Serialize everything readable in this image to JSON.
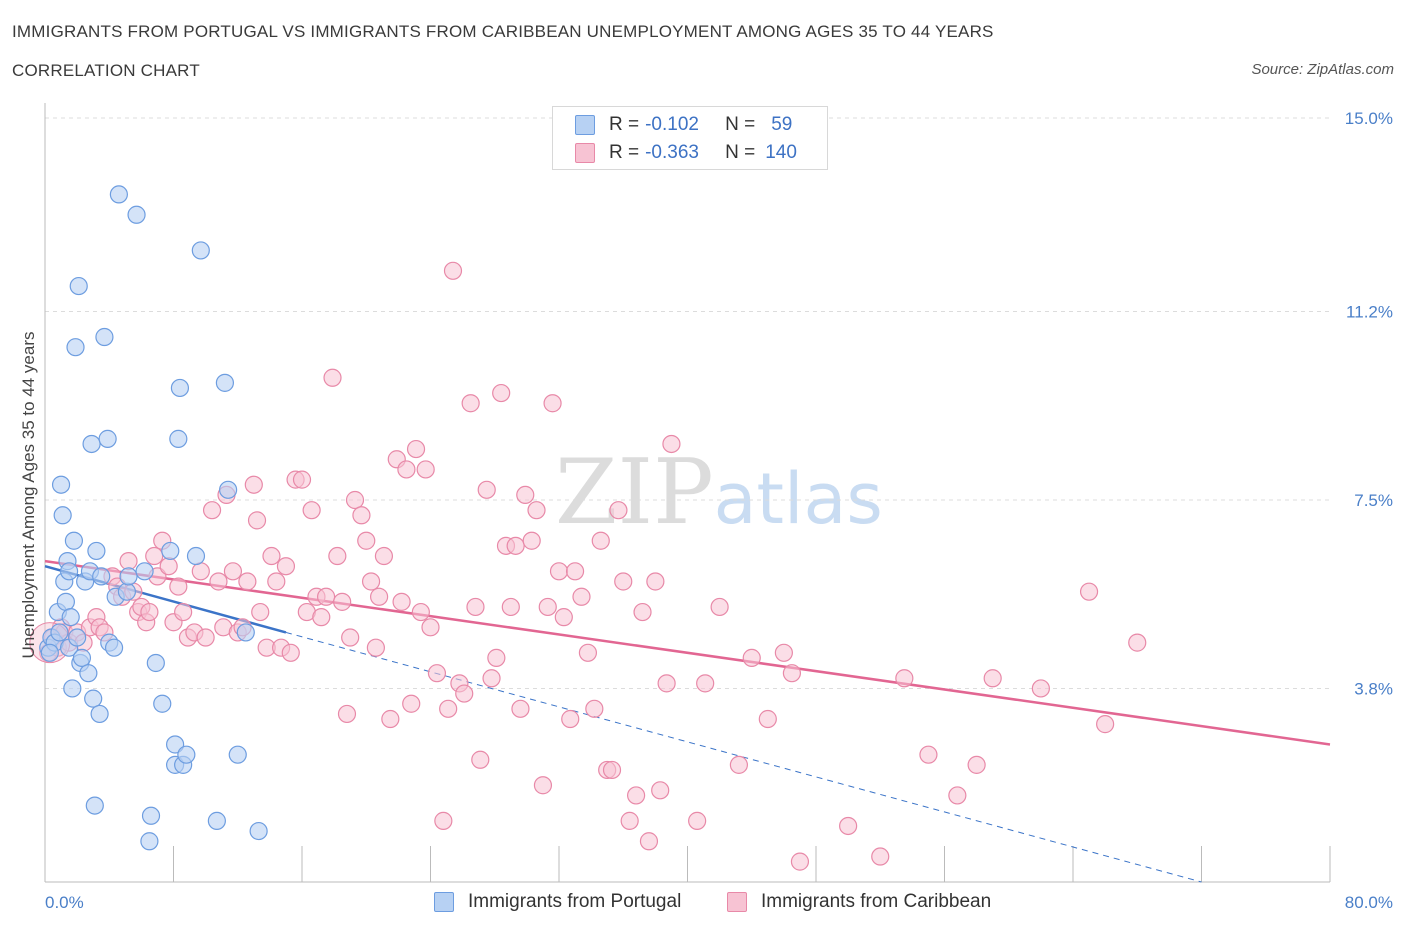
{
  "title": "IMMIGRANTS FROM PORTUGAL VS IMMIGRANTS FROM CARIBBEAN UNEMPLOYMENT AMONG AGES 35 TO 44 YEARS",
  "subtitle": "CORRELATION CHART",
  "source": "Source: ZipAtlas.com",
  "watermark": {
    "zip": "ZIP",
    "atlas": "atlas"
  },
  "legend": {
    "r_label": "R =",
    "n_label": "N =",
    "portugal": {
      "r": "-0.102",
      "n": "59"
    },
    "caribbean": {
      "r": "-0.363",
      "n": "140"
    }
  },
  "colors": {
    "portugal": "#6d9de0",
    "portugal_fill": "#b7d1f3",
    "caribbean": "#e889a8",
    "caribbean_fill": "#f7c3d3",
    "portugal_line": "#3b74c8",
    "caribbean_line": "#e26692",
    "tick": "#4a7fc8"
  },
  "chart_data": {
    "type": "scatter",
    "title": "IMMIGRANTS FROM PORTUGAL VS IMMIGRANTS FROM CARIBBEAN UNEMPLOYMENT AMONG AGES 35 TO 44 YEARS",
    "xlabel": "",
    "ylabel": "Unemployment Among Ages 35 to 44 years",
    "xlim": [
      0,
      80
    ],
    "ylim": [
      0,
      15
    ],
    "x_tick_labels": [
      "0.0%",
      "80.0%"
    ],
    "y_ticks": [
      3.8,
      7.5,
      11.2,
      15.0
    ],
    "y_tick_labels": [
      "3.8%",
      "7.5%",
      "11.2%",
      "15.0%"
    ],
    "grid": "horizontal dashed",
    "legend_placement": "top-center",
    "series": [
      {
        "name": "Immigrants from Portugal",
        "trend": {
          "x": [
            0,
            15
          ],
          "y": [
            6.2,
            4.9
          ],
          "extended_to": [
            72,
            0
          ]
        },
        "points": [
          [
            0.2,
            4.6
          ],
          [
            0.4,
            4.8
          ],
          [
            0.6,
            4.7
          ],
          [
            0.8,
            5.3
          ],
          [
            1.0,
            7.8
          ],
          [
            1.1,
            7.2
          ],
          [
            1.2,
            5.9
          ],
          [
            1.3,
            5.5
          ],
          [
            1.4,
            6.3
          ],
          [
            1.5,
            4.6
          ],
          [
            1.6,
            5.2
          ],
          [
            1.7,
            3.8
          ],
          [
            1.8,
            6.7
          ],
          [
            1.9,
            10.5
          ],
          [
            2.1,
            11.7
          ],
          [
            2.2,
            4.3
          ],
          [
            2.3,
            4.4
          ],
          [
            2.5,
            5.9
          ],
          [
            2.7,
            4.1
          ],
          [
            2.8,
            6.1
          ],
          [
            2.9,
            8.6
          ],
          [
            3.0,
            3.6
          ],
          [
            3.1,
            1.5
          ],
          [
            3.2,
            6.5
          ],
          [
            3.4,
            3.3
          ],
          [
            3.5,
            6.0
          ],
          [
            3.7,
            10.7
          ],
          [
            3.9,
            8.7
          ],
          [
            4.0,
            4.7
          ],
          [
            4.3,
            4.6
          ],
          [
            4.4,
            5.6
          ],
          [
            4.6,
            13.5
          ],
          [
            5.1,
            5.7
          ],
          [
            5.2,
            6.0
          ],
          [
            5.7,
            13.1
          ],
          [
            6.2,
            6.1
          ],
          [
            6.5,
            0.8
          ],
          [
            6.6,
            1.3
          ],
          [
            6.9,
            4.3
          ],
          [
            7.3,
            3.5
          ],
          [
            7.8,
            6.5
          ],
          [
            8.1,
            2.7
          ],
          [
            8.1,
            2.3
          ],
          [
            8.3,
            8.7
          ],
          [
            8.4,
            9.7
          ],
          [
            8.6,
            2.3
          ],
          [
            8.8,
            2.5
          ],
          [
            9.4,
            6.4
          ],
          [
            9.7,
            12.4
          ],
          [
            10.7,
            1.2
          ],
          [
            11.2,
            9.8
          ],
          [
            11.4,
            7.7
          ],
          [
            12.0,
            2.5
          ],
          [
            12.5,
            4.9
          ],
          [
            13.3,
            1.0
          ],
          [
            0.3,
            4.5
          ],
          [
            0.9,
            4.9
          ],
          [
            2.0,
            4.8
          ],
          [
            1.5,
            6.1
          ]
        ]
      },
      {
        "name": "Immigrants from Caribbean",
        "trend": {
          "x": [
            0,
            80
          ],
          "y": [
            6.3,
            2.7
          ]
        },
        "points": [
          [
            0.2,
            4.5
          ],
          [
            0.5,
            4.8
          ],
          [
            0.8,
            4.6
          ],
          [
            1.0,
            5.0
          ],
          [
            1.2,
            4.9
          ],
          [
            1.5,
            4.7
          ],
          [
            2.0,
            4.9
          ],
          [
            2.4,
            4.7
          ],
          [
            2.8,
            5.0
          ],
          [
            3.2,
            5.2
          ],
          [
            3.4,
            5.0
          ],
          [
            3.7,
            4.9
          ],
          [
            4.2,
            6.0
          ],
          [
            4.5,
            5.8
          ],
          [
            4.8,
            5.6
          ],
          [
            5.2,
            6.3
          ],
          [
            5.5,
            5.7
          ],
          [
            5.8,
            5.3
          ],
          [
            6.0,
            5.4
          ],
          [
            6.3,
            5.1
          ],
          [
            6.5,
            5.3
          ],
          [
            6.8,
            6.4
          ],
          [
            7.0,
            6.0
          ],
          [
            7.3,
            6.7
          ],
          [
            7.7,
            6.2
          ],
          [
            8.0,
            5.1
          ],
          [
            8.3,
            5.8
          ],
          [
            8.6,
            5.3
          ],
          [
            8.9,
            4.8
          ],
          [
            9.3,
            4.9
          ],
          [
            9.7,
            6.1
          ],
          [
            10.0,
            4.8
          ],
          [
            10.4,
            7.3
          ],
          [
            10.8,
            5.9
          ],
          [
            11.1,
            5.0
          ],
          [
            11.3,
            7.6
          ],
          [
            11.7,
            6.1
          ],
          [
            12.0,
            4.9
          ],
          [
            12.3,
            5.0
          ],
          [
            12.6,
            5.9
          ],
          [
            13.0,
            7.8
          ],
          [
            13.2,
            7.1
          ],
          [
            13.4,
            5.3
          ],
          [
            13.8,
            4.6
          ],
          [
            14.1,
            6.4
          ],
          [
            14.4,
            5.9
          ],
          [
            14.7,
            4.6
          ],
          [
            15.0,
            6.2
          ],
          [
            15.3,
            4.5
          ],
          [
            15.6,
            7.9
          ],
          [
            16.0,
            7.9
          ],
          [
            16.3,
            5.3
          ],
          [
            16.6,
            7.3
          ],
          [
            16.9,
            5.6
          ],
          [
            17.2,
            5.2
          ],
          [
            17.5,
            5.6
          ],
          [
            17.9,
            9.9
          ],
          [
            18.2,
            6.4
          ],
          [
            18.5,
            5.5
          ],
          [
            18.8,
            3.3
          ],
          [
            19.0,
            4.8
          ],
          [
            19.3,
            7.5
          ],
          [
            19.7,
            7.2
          ],
          [
            20.0,
            6.7
          ],
          [
            20.3,
            5.9
          ],
          [
            20.6,
            4.6
          ],
          [
            20.8,
            5.6
          ],
          [
            21.1,
            6.4
          ],
          [
            21.5,
            3.2
          ],
          [
            21.9,
            8.3
          ],
          [
            22.2,
            5.5
          ],
          [
            22.5,
            8.1
          ],
          [
            22.8,
            3.5
          ],
          [
            23.1,
            8.5
          ],
          [
            23.4,
            5.3
          ],
          [
            23.7,
            8.1
          ],
          [
            24.0,
            5.0
          ],
          [
            24.4,
            4.1
          ],
          [
            24.8,
            1.2
          ],
          [
            25.1,
            3.4
          ],
          [
            25.4,
            12.0
          ],
          [
            25.8,
            3.9
          ],
          [
            26.1,
            3.7
          ],
          [
            26.5,
            9.4
          ],
          [
            26.8,
            5.4
          ],
          [
            27.1,
            2.4
          ],
          [
            27.5,
            7.7
          ],
          [
            27.8,
            4.0
          ],
          [
            28.1,
            4.4
          ],
          [
            28.4,
            9.6
          ],
          [
            28.7,
            6.6
          ],
          [
            29.0,
            5.4
          ],
          [
            29.3,
            6.6
          ],
          [
            29.6,
            3.4
          ],
          [
            29.9,
            7.6
          ],
          [
            30.3,
            6.7
          ],
          [
            30.6,
            7.3
          ],
          [
            31.0,
            1.9
          ],
          [
            31.3,
            5.4
          ],
          [
            31.6,
            9.4
          ],
          [
            32.0,
            6.1
          ],
          [
            32.3,
            5.2
          ],
          [
            32.7,
            3.2
          ],
          [
            33.0,
            6.1
          ],
          [
            33.4,
            5.6
          ],
          [
            33.8,
            4.5
          ],
          [
            34.2,
            3.4
          ],
          [
            34.6,
            6.7
          ],
          [
            35.0,
            2.2
          ],
          [
            35.3,
            2.2
          ],
          [
            35.7,
            7.3
          ],
          [
            36.0,
            5.9
          ],
          [
            36.4,
            1.2
          ],
          [
            36.8,
            1.7
          ],
          [
            37.2,
            5.3
          ],
          [
            37.6,
            0.8
          ],
          [
            38.0,
            5.9
          ],
          [
            38.3,
            1.8
          ],
          [
            38.7,
            3.9
          ],
          [
            39.0,
            8.6
          ],
          [
            40.6,
            1.2
          ],
          [
            41.1,
            3.9
          ],
          [
            42.0,
            5.4
          ],
          [
            43.2,
            2.3
          ],
          [
            44.0,
            4.4
          ],
          [
            45.0,
            3.2
          ],
          [
            46.0,
            4.5
          ],
          [
            46.5,
            4.1
          ],
          [
            47.0,
            0.4
          ],
          [
            50.0,
            1.1
          ],
          [
            52.0,
            0.5
          ],
          [
            53.5,
            4.0
          ],
          [
            55.0,
            2.5
          ],
          [
            56.8,
            1.7
          ],
          [
            58.0,
            2.3
          ],
          [
            59.0,
            4.0
          ],
          [
            62.0,
            3.8
          ],
          [
            65.0,
            5.7
          ],
          [
            66.0,
            3.1
          ],
          [
            68.0,
            4.7
          ]
        ]
      }
    ]
  },
  "bottom_legend": {
    "portugal_label": "Immigrants from Portugal",
    "caribbean_label": "Immigrants from Caribbean"
  }
}
